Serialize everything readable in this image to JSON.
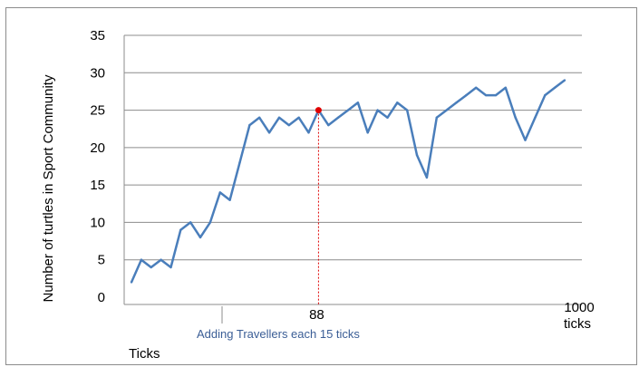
{
  "chart_data": {
    "type": "line",
    "title": "",
    "ylabel": "Number of turtles in Sport Community",
    "xlabel": "Ticks",
    "ylim": [
      0,
      35
    ],
    "yticks": [
      "0",
      "5",
      "10",
      "15",
      "20",
      "25",
      "30",
      "35"
    ],
    "grid": "horizontal",
    "series": [
      {
        "color": "#4a7ebb",
        "values": [
          2,
          5,
          4,
          5,
          4,
          9,
          10,
          8,
          10,
          14,
          13,
          18,
          23,
          24,
          22,
          24,
          23,
          24,
          22,
          25,
          23,
          24,
          25,
          26,
          22,
          25,
          24,
          26,
          25,
          19,
          16,
          24,
          25,
          26,
          27,
          28,
          27,
          27,
          28,
          24,
          21,
          24,
          27,
          28,
          29
        ]
      }
    ],
    "x_axis_labels": [
      {
        "text": "88",
        "index": 19
      },
      {
        "text": "1000",
        "index": 44
      },
      {
        "text": "ticks",
        "index": 44
      }
    ],
    "marker": {
      "index": 19,
      "value": 25,
      "color": "#e00000"
    },
    "annotation": "Adding Travellers  each 15 ticks"
  }
}
